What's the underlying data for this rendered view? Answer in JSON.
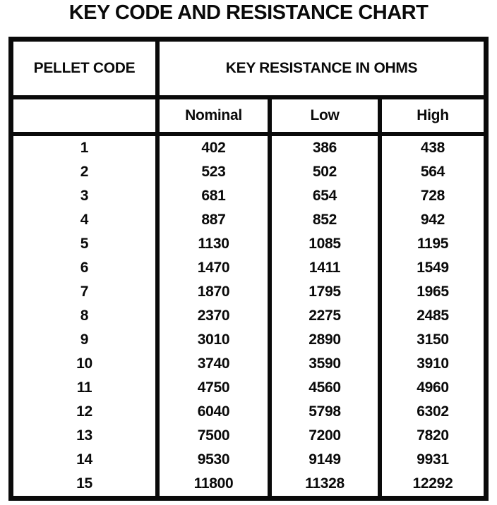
{
  "title": "KEY CODE AND RESISTANCE CHART",
  "colors": {
    "ink": "#0a0a0a",
    "paper": "#ffffff"
  },
  "table": {
    "pellet_code_header": "PELLET CODE",
    "resistance_group_header": "KEY RESISTANCE IN OHMS",
    "subheaders": {
      "nominal": "Nominal",
      "low": "Low",
      "high": "High"
    },
    "rows": [
      {
        "code": "1",
        "nominal": "402",
        "low": "386",
        "high": "438"
      },
      {
        "code": "2",
        "nominal": "523",
        "low": "502",
        "high": "564"
      },
      {
        "code": "3",
        "nominal": "681",
        "low": "654",
        "high": "728"
      },
      {
        "code": "4",
        "nominal": "887",
        "low": "852",
        "high": "942"
      },
      {
        "code": "5",
        "nominal": "1130",
        "low": "1085",
        "high": "1195"
      },
      {
        "code": "6",
        "nominal": "1470",
        "low": "1411",
        "high": "1549"
      },
      {
        "code": "7",
        "nominal": "1870",
        "low": "1795",
        "high": "1965"
      },
      {
        "code": "8",
        "nominal": "2370",
        "low": "2275",
        "high": "2485"
      },
      {
        "code": "9",
        "nominal": "3010",
        "low": "2890",
        "high": "3150"
      },
      {
        "code": "10",
        "nominal": "3740",
        "low": "3590",
        "high": "3910"
      },
      {
        "code": "11",
        "nominal": "4750",
        "low": "4560",
        "high": "4960"
      },
      {
        "code": "12",
        "nominal": "6040",
        "low": "5798",
        "high": "6302"
      },
      {
        "code": "13",
        "nominal": "7500",
        "low": "7200",
        "high": "7820"
      },
      {
        "code": "14",
        "nominal": "9530",
        "low": "9149",
        "high": "9931"
      },
      {
        "code": "15",
        "nominal": "11800",
        "low": "11328",
        "high": "12292"
      }
    ]
  }
}
